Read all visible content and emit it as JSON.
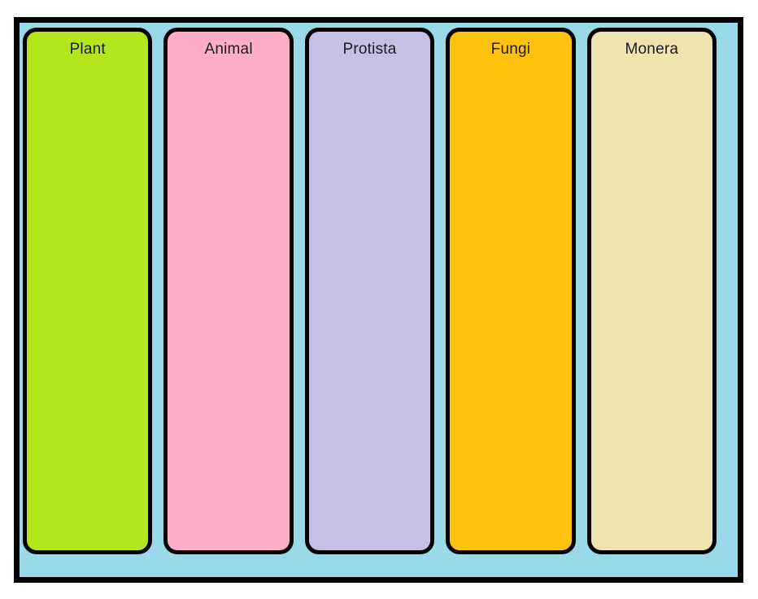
{
  "diagram": {
    "board": {
      "background_color": "#99d9ea",
      "border_color": "#000000"
    },
    "columns": [
      {
        "label": "Plant",
        "color": "#b5e61d"
      },
      {
        "label": "Animal",
        "color": "#ffaec9"
      },
      {
        "label": "Protista",
        "color": "#c8bfe7"
      },
      {
        "label": "Fungi",
        "color": "#ffc20e"
      },
      {
        "label": "Monera",
        "color": "#efe4b0"
      }
    ]
  }
}
